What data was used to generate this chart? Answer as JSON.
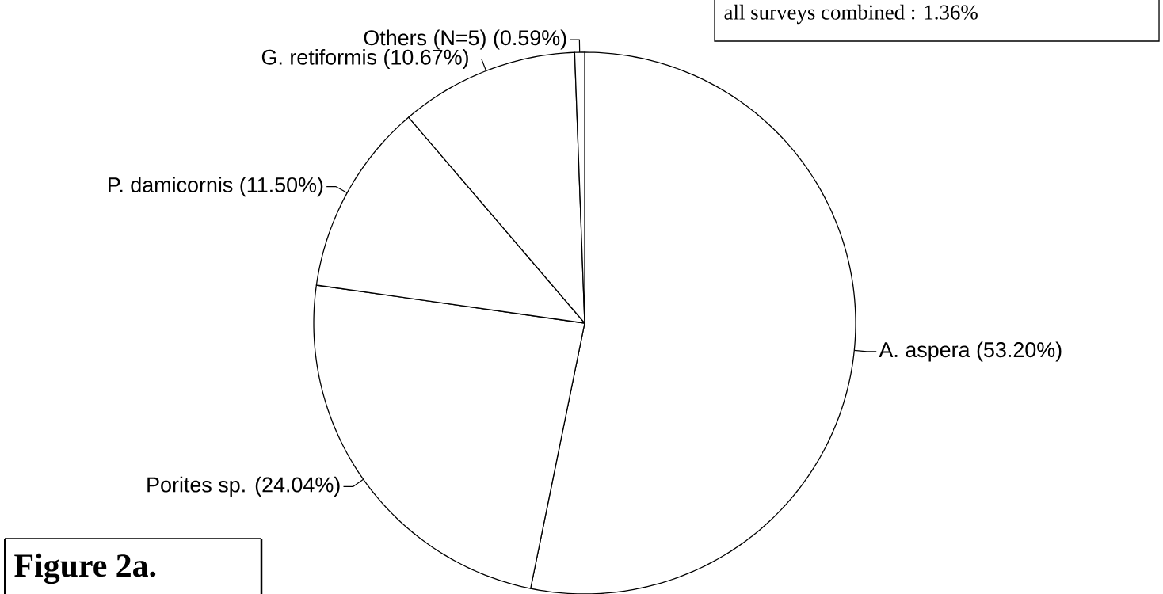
{
  "chart_data": {
    "type": "pie",
    "title": "Figure 2a.",
    "categories": [
      "A. aspera (53.20%)",
      "Porites sp. (24.04%)",
      "P. damicornis (11.50%)",
      "G. retiformis (10.67%)",
      "Others (N=5) (0.59%)"
    ],
    "values": [
      53.2,
      24.04,
      11.5,
      10.67,
      0.59
    ],
    "colors": [
      "#ffffff",
      "#ffffff",
      "#ffffff",
      "#ffffff",
      "#ffffff"
    ],
    "annotations": [
      "all surveys combined : 1.36%"
    ]
  }
}
